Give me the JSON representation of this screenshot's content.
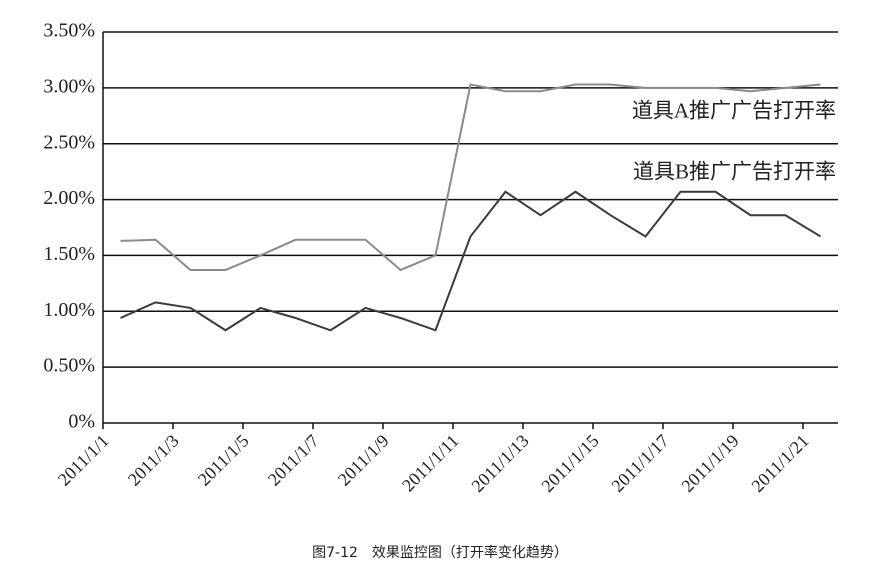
{
  "chart_data": {
    "type": "line",
    "categories": [
      "2011/1/1",
      null,
      "2011/1/3",
      null,
      "2011/1/5",
      null,
      "2011/1/7",
      null,
      "2011/1/9",
      null,
      "2011/1/11",
      null,
      "2011/1/13",
      null,
      "2011/1/15",
      null,
      "2011/1/17",
      null,
      "2011/1/19",
      null,
      "2011/1/21"
    ],
    "series": [
      {
        "name": "道具A推广广告打开率",
        "color": "#8a8a8a",
        "values": [
          1.63,
          1.64,
          1.37,
          1.37,
          1.5,
          1.64,
          1.64,
          1.64,
          1.37,
          1.5,
          3.03,
          2.97,
          2.97,
          3.03,
          3.03,
          3.0,
          3.0,
          3.0,
          2.97,
          3.0,
          3.03
        ]
      },
      {
        "name": "道具B推广广告打开率",
        "color": "#3a3a3a",
        "values": [
          0.94,
          1.08,
          1.03,
          0.83,
          1.03,
          0.94,
          0.83,
          1.03,
          0.94,
          0.83,
          1.67,
          2.07,
          1.86,
          2.07,
          1.86,
          1.67,
          2.07,
          2.07,
          1.86,
          1.86,
          1.67
        ]
      }
    ],
    "ylim": [
      0,
      3.5
    ],
    "yticks": [
      {
        "value": 0,
        "label": "0%"
      },
      {
        "value": 0.5,
        "label": "0.50%"
      },
      {
        "value": 1,
        "label": "1.00%"
      },
      {
        "value": 1.5,
        "label": "1.50%"
      },
      {
        "value": 2,
        "label": "2.00%"
      },
      {
        "value": 2.5,
        "label": "2.50%"
      },
      {
        "value": 3,
        "label": "3.00%"
      },
      {
        "value": 3.5,
        "label": "3.50%"
      }
    ],
    "grid": true,
    "caption": "图7-12　效果监控图（打开率变化趋势）"
  }
}
